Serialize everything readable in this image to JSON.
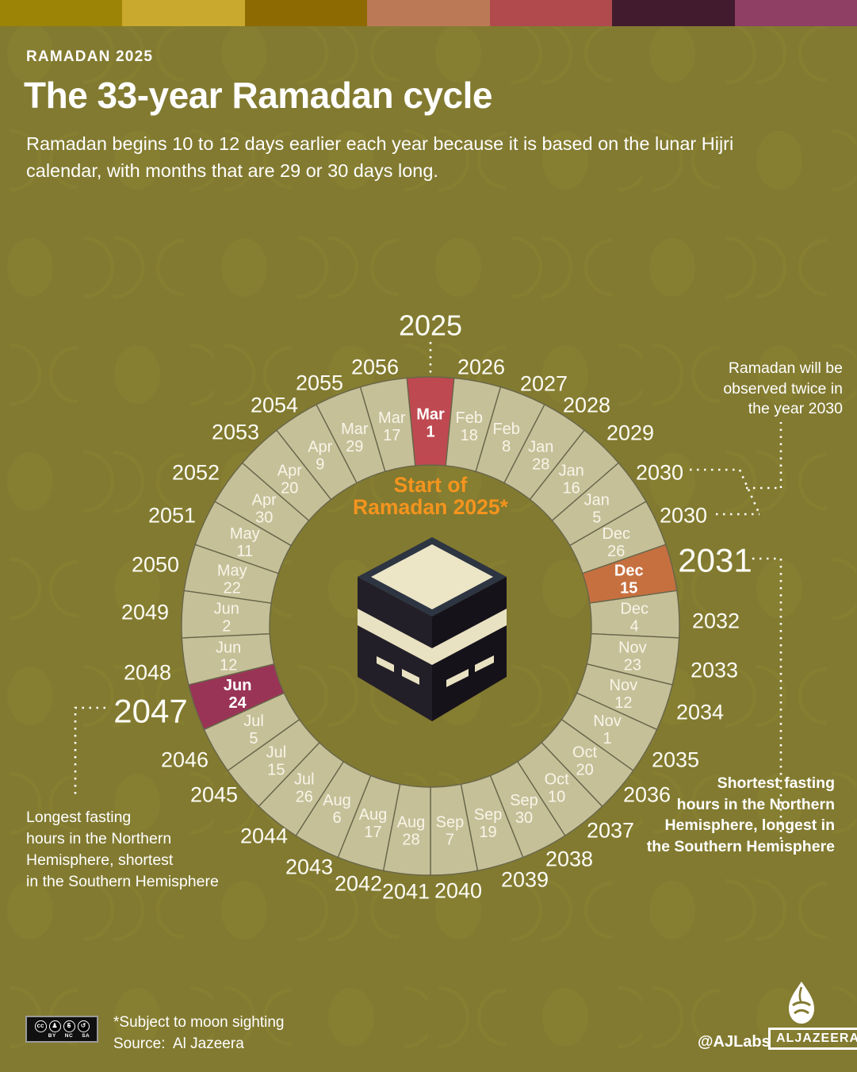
{
  "header": {
    "kicker": "RAMADAN 2025",
    "title": "The 33-year Ramadan cycle",
    "subtitle": "Ramadan begins 10 to 12 days earlier each year because it is based on the lunar Hijri calendar, with months that are 29 or 30 days long."
  },
  "palette_bar": [
    "#9c8406",
    "#c9a92e",
    "#8e6a02",
    "#bb7a55",
    "#b04a4c",
    "#421c2e",
    "#8e3f63"
  ],
  "chart_data": {
    "type": "pie",
    "title": "The 33-year Ramadan cycle",
    "slices_equal": true,
    "direction": "clockwise",
    "start_position": "top",
    "segment_color": "#c6c099",
    "segment_stroke": "#68664a",
    "label_color": "#f8f5e8",
    "year_label_color": "#fdfcf5",
    "segments": [
      {
        "year": "2025",
        "month": "Mar",
        "day": "1",
        "highlight_color": "#bf4950",
        "emphasis": true
      },
      {
        "year": "2026",
        "month": "Feb",
        "day": "18"
      },
      {
        "year": "2027",
        "month": "Feb",
        "day": "8"
      },
      {
        "year": "2028",
        "month": "Jan",
        "day": "28"
      },
      {
        "year": "2029",
        "month": "Jan",
        "day": "16"
      },
      {
        "year": "2030",
        "month": "Jan",
        "day": "5"
      },
      {
        "year": "2030",
        "month": "Dec",
        "day": "26"
      },
      {
        "year": "2031",
        "month": "Dec",
        "day": "15",
        "highlight_color": "#c7703f",
        "emphasis": true
      },
      {
        "year": "2032",
        "month": "Dec",
        "day": "4"
      },
      {
        "year": "2033",
        "month": "Nov",
        "day": "23"
      },
      {
        "year": "2034",
        "month": "Nov",
        "day": "12"
      },
      {
        "year": "2035",
        "month": "Nov",
        "day": "1"
      },
      {
        "year": "2036",
        "month": "Oct",
        "day": "20"
      },
      {
        "year": "2037",
        "month": "Oct",
        "day": "10"
      },
      {
        "year": "2038",
        "month": "Sep",
        "day": "30"
      },
      {
        "year": "2039",
        "month": "Sep",
        "day": "19"
      },
      {
        "year": "2040",
        "month": "Sep",
        "day": "7"
      },
      {
        "year": "2041",
        "month": "Aug",
        "day": "28"
      },
      {
        "year": "2042",
        "month": "Aug",
        "day": "17"
      },
      {
        "year": "2043",
        "month": "Aug",
        "day": "6"
      },
      {
        "year": "2044",
        "month": "Jul",
        "day": "26"
      },
      {
        "year": "2045",
        "month": "Jul",
        "day": "15"
      },
      {
        "year": "2046",
        "month": "Jul",
        "day": "5"
      },
      {
        "year": "2047",
        "month": "Jun",
        "day": "24",
        "highlight_color": "#9a3456",
        "emphasis": true
      },
      {
        "year": "2048",
        "month": "Jun",
        "day": "12"
      },
      {
        "year": "2049",
        "month": "Jun",
        "day": "2"
      },
      {
        "year": "2050",
        "month": "May",
        "day": "22"
      },
      {
        "year": "2051",
        "month": "May",
        "day": "11"
      },
      {
        "year": "2052",
        "month": "Apr",
        "day": "30"
      },
      {
        "year": "2053",
        "month": "Apr",
        "day": "20"
      },
      {
        "year": "2054",
        "month": "Apr",
        "day": "9"
      },
      {
        "year": "2055",
        "month": "Mar",
        "day": "29"
      },
      {
        "year": "2056",
        "month": "Mar",
        "day": "17"
      }
    ]
  },
  "center_label": {
    "line1": "Start of",
    "line2": "Ramadan 2025*",
    "color": "#f5941e"
  },
  "annotations": {
    "twice_2030": {
      "lines": [
        "Ramadan will be",
        "observed twice in",
        "the year 2030"
      ]
    },
    "shortest": {
      "lines": [
        "Shortest fasting",
        "hours in the Northern",
        "Hemisphere, longest in",
        "the Southern Hemisphere"
      ]
    },
    "longest": {
      "lines": [
        "Longest fasting",
        "hours in the Northern",
        "Hemisphere, shortest",
        "in the Southern Hemisphere"
      ]
    }
  },
  "footer": {
    "note": "*Subject to moon sighting",
    "source_label": "Source:",
    "source": "Al Jazeera",
    "credit": "@AJLabs",
    "brand": "ALJAZEERA",
    "cc_symbol": "cc",
    "cc_labels": [
      "BY",
      "NC",
      "SA"
    ]
  }
}
